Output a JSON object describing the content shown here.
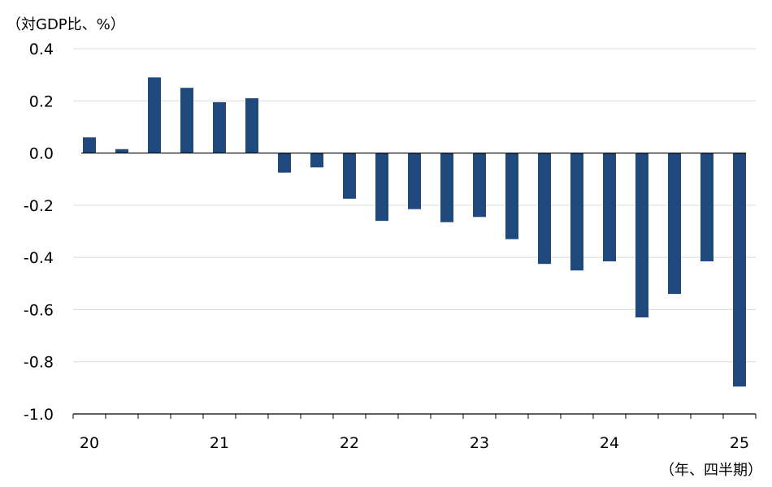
{
  "chart_data": {
    "type": "bar",
    "y_unit_label": "（対GDP比、%）",
    "x_unit_label": "（年、四半期）",
    "ylim": [
      -1.0,
      0.4
    ],
    "y_ticks": [
      "0.4",
      "0.2",
      "0.0",
      "-0.2",
      "-0.4",
      "-0.6",
      "-0.8",
      "-1.0"
    ],
    "y_tick_values": [
      0.4,
      0.2,
      0.0,
      -0.2,
      -0.4,
      -0.6,
      -0.8,
      -1.0
    ],
    "x_year_labels": [
      {
        "label": "20",
        "quarter_index": 0
      },
      {
        "label": "21",
        "quarter_index": 4
      },
      {
        "label": "22",
        "quarter_index": 8
      },
      {
        "label": "23",
        "quarter_index": 12
      },
      {
        "label": "24",
        "quarter_index": 16
      },
      {
        "label": "25",
        "quarter_index": 20
      }
    ],
    "categories": [
      "20Q1",
      "20Q2",
      "20Q3",
      "20Q4",
      "21Q1",
      "21Q2",
      "21Q3",
      "21Q4",
      "22Q1",
      "22Q2",
      "22Q3",
      "22Q4",
      "23Q1",
      "23Q2",
      "23Q3",
      "23Q4",
      "24Q1",
      "24Q2",
      "24Q3",
      "24Q4",
      "25Q1"
    ],
    "values": [
      0.06,
      0.015,
      0.29,
      0.25,
      0.195,
      0.21,
      -0.075,
      -0.055,
      -0.175,
      -0.26,
      -0.215,
      -0.265,
      -0.245,
      -0.33,
      -0.425,
      -0.45,
      -0.415,
      -0.63,
      -0.54,
      -0.415,
      -0.895
    ],
    "grid": true,
    "bar_color": "#1f497d"
  }
}
